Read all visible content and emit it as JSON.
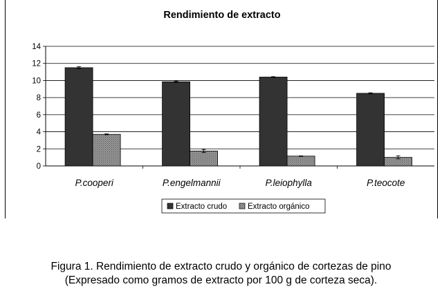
{
  "chart_data": {
    "type": "bar",
    "title": "Rendimiento de extracto",
    "categories": [
      "P.cooperi",
      "P.engelmannii",
      "P.leiophylla",
      "P.teocote"
    ],
    "series": [
      {
        "name": "Extracto crudo",
        "values": [
          11.5,
          9.85,
          10.4,
          8.5
        ],
        "errors": [
          0.12,
          0.08,
          0.05,
          0.06
        ],
        "color": "#333333"
      },
      {
        "name": "Extracto orgánico",
        "values": [
          3.7,
          1.75,
          1.15,
          1.0
        ],
        "errors": [
          0.05,
          0.18,
          0.03,
          0.17
        ],
        "color": "#8a8a8a"
      }
    ],
    "yticks": [
      0,
      2,
      4,
      6,
      8,
      10,
      12,
      14
    ],
    "ylim": [
      0,
      14
    ],
    "xlabel": "",
    "ylabel": "",
    "grid": true,
    "legend_position": "bottom"
  },
  "caption": {
    "line1": "Figura 1. Rendimiento de extracto crudo y orgánico de cortezas de pino",
    "line2": "(Expresado como gramos de extracto por 100 g de corteza seca)."
  }
}
